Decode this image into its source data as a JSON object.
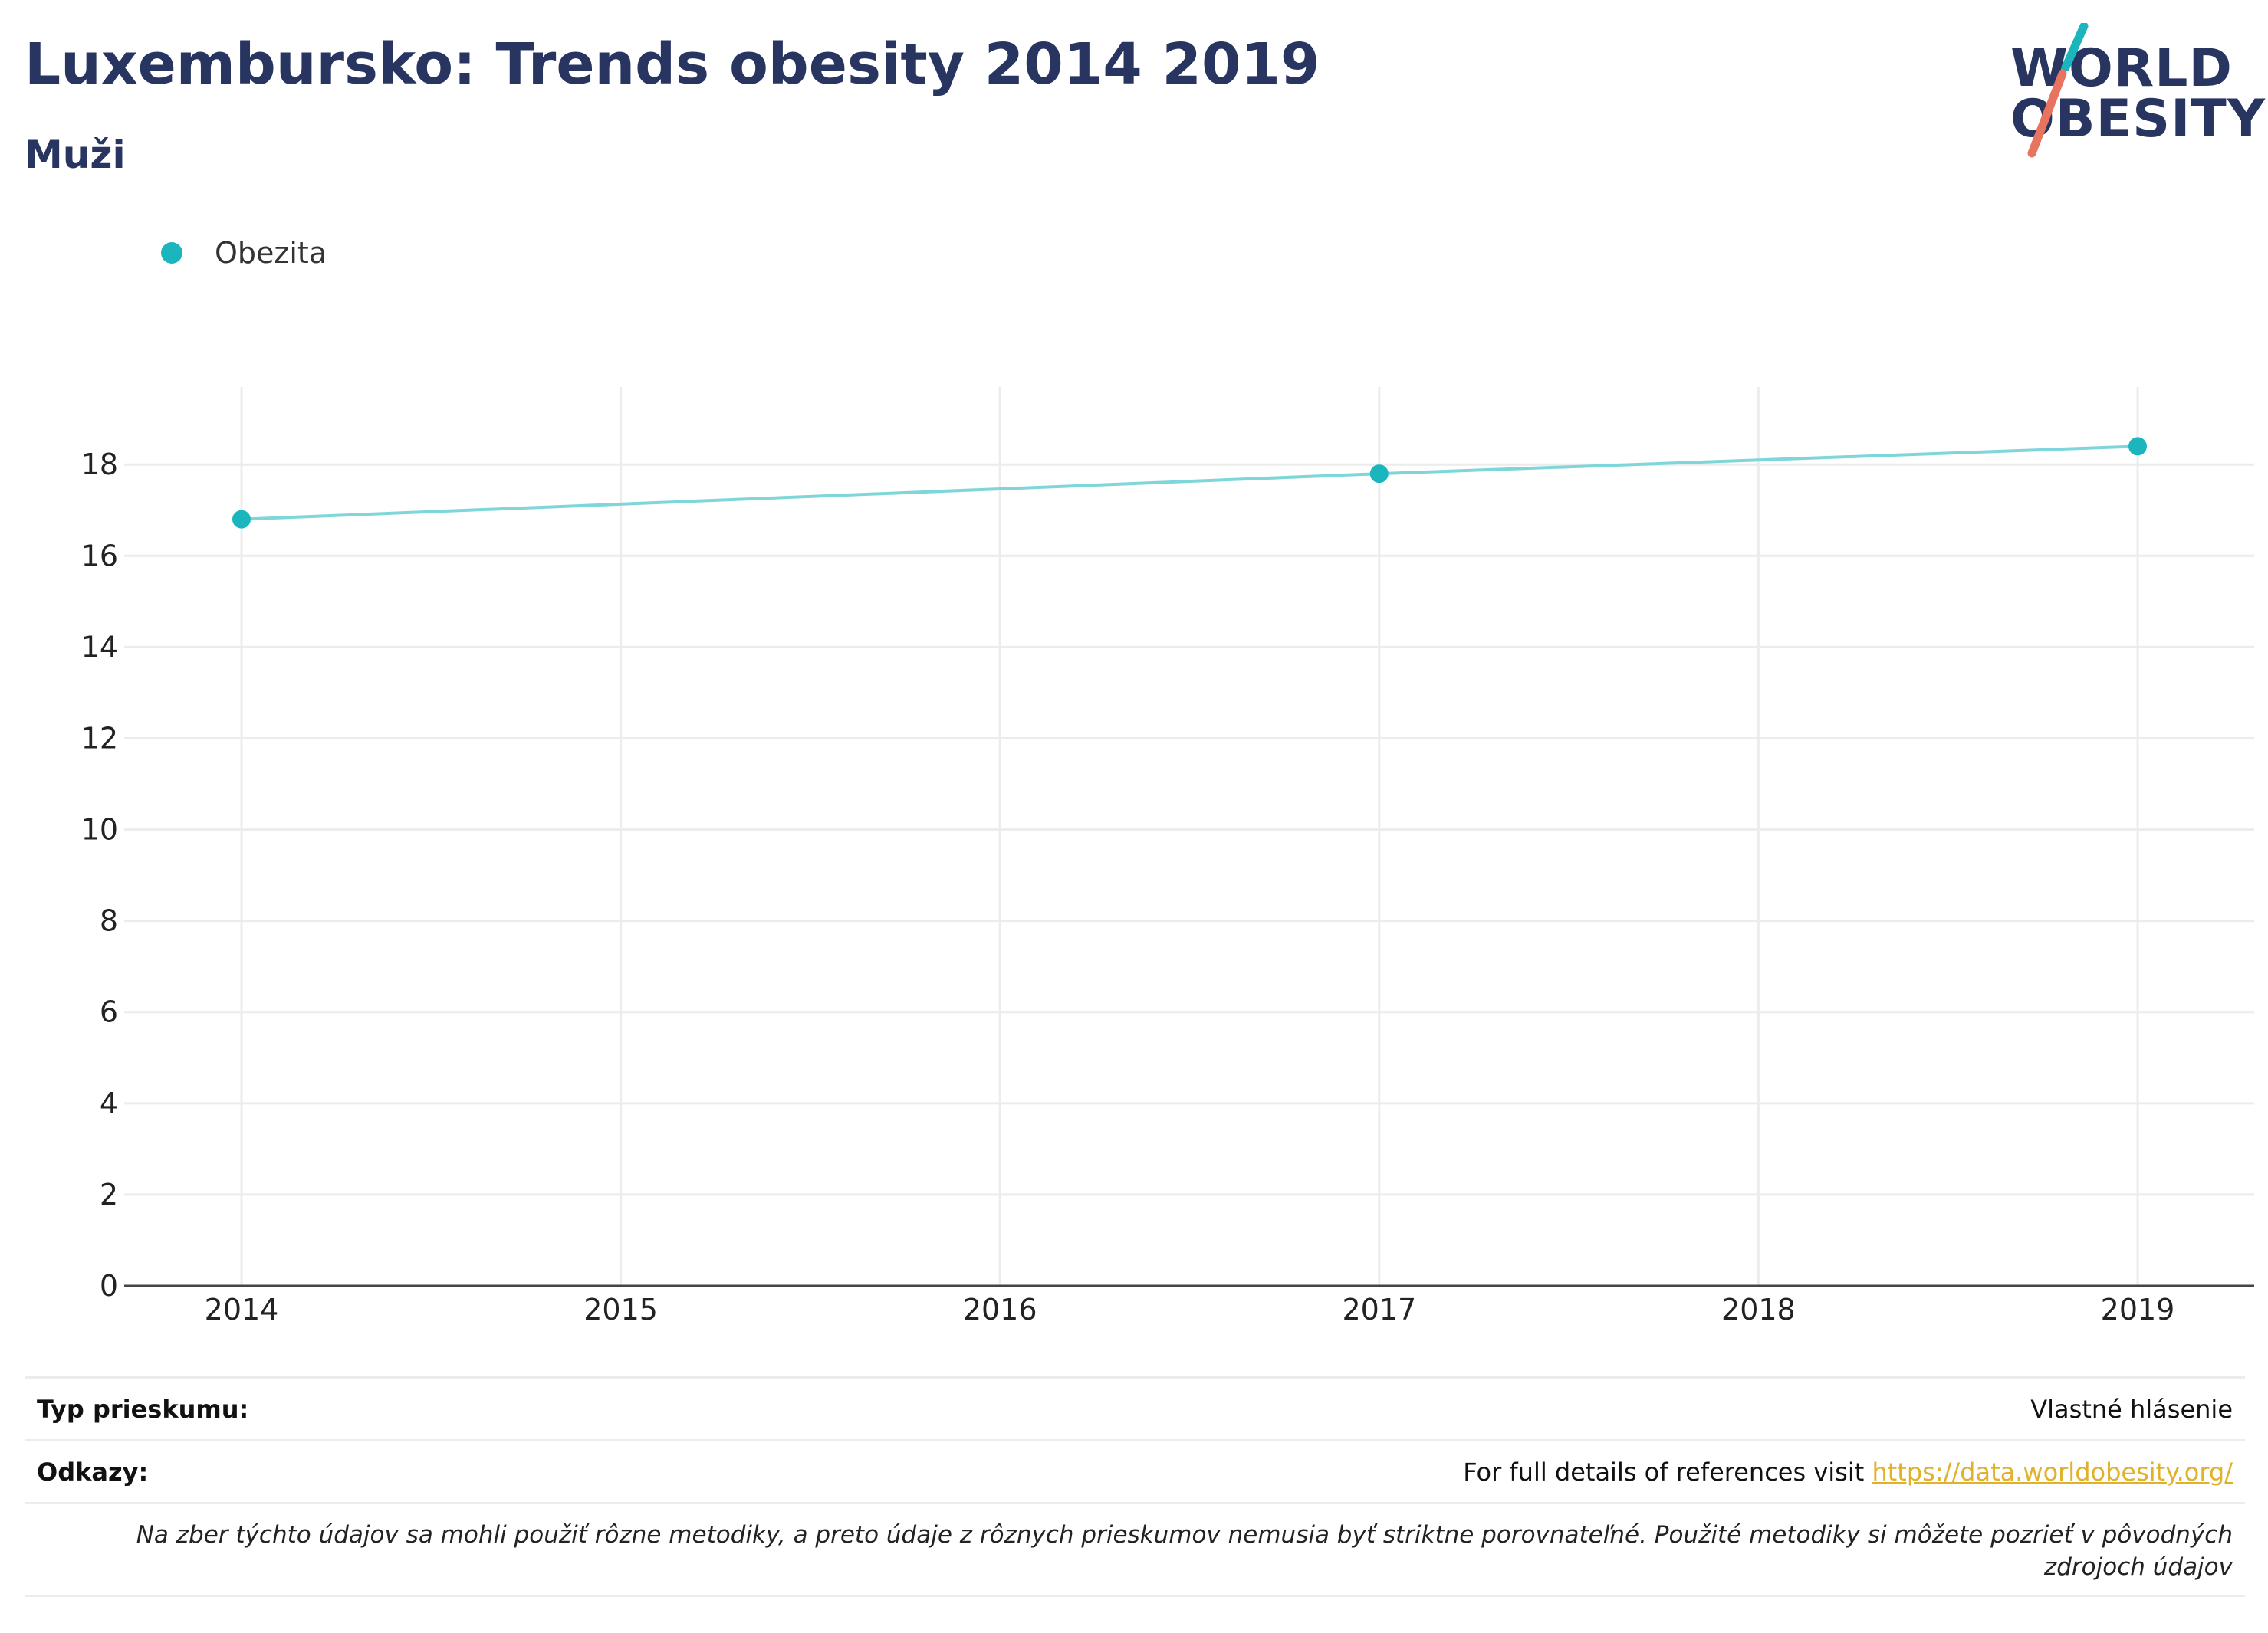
{
  "header": {
    "title": "Luxembursko: Trends obesity 2014 2019",
    "subtitle": "Muži"
  },
  "logo": {
    "line1": "WORLD",
    "line2": "OBESITY",
    "colors": {
      "teal": "#1bb5be",
      "coral": "#e8735e",
      "navy": "#283561"
    }
  },
  "legend": {
    "label": "Obezita",
    "color": "#1bb5be"
  },
  "chart_data": {
    "type": "line",
    "title": "",
    "xlabel": "",
    "ylabel": "",
    "x_ticks": [
      "2014",
      "2015",
      "2016",
      "2017",
      "2018",
      "2019"
    ],
    "y_ticks": [
      "0",
      "2",
      "4",
      "6",
      "8",
      "10",
      "12",
      "14",
      "16",
      "18"
    ],
    "xlim": [
      2014,
      2019
    ],
    "ylim": [
      0,
      19.7
    ],
    "grid": true,
    "legend_position": "top-left",
    "series": [
      {
        "name": "Obezita",
        "color": "#1bb5be",
        "line_color": "#7fd6da",
        "points": [
          {
            "x": 2014,
            "y": 16.8
          },
          {
            "x": 2017,
            "y": 17.8
          },
          {
            "x": 2019,
            "y": 18.4
          }
        ]
      }
    ]
  },
  "info": {
    "survey_type_label": "Typ prieskumu:",
    "survey_type_value": "Vlastné hlásenie",
    "references_label": "Odkazy:",
    "references_text": "For full details of references visit ",
    "references_link": "https://data.worldobesity.org/",
    "note": "Na zber týchto údajov sa mohli použiť rôzne metodiky, a preto údaje z rôznych prieskumov nemusia byť striktne porovnateľné. Použité metodiky si môžete pozrieť v pôvodných zdrojoch údajov"
  }
}
